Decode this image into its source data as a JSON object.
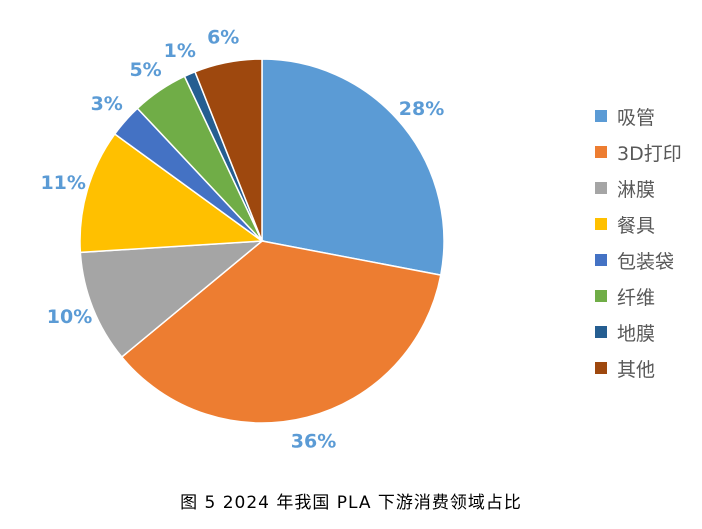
{
  "chart_data": {
    "type": "pie",
    "categories": [
      "吸管",
      "3D打印",
      "淋膜",
      "餐具",
      "包装袋",
      "纤维",
      "地膜",
      "其他"
    ],
    "values": [
      28,
      36,
      10,
      11,
      3,
      5,
      1,
      6
    ],
    "data_labels": [
      "28%",
      "36%",
      "10%",
      "11%",
      "3%",
      "5%",
      "1%",
      "6%"
    ],
    "colors": [
      "#5b9bd5",
      "#ed7d31",
      "#a5a5a5",
      "#ffc000",
      "#4472c4",
      "#70ad47",
      "#255e91",
      "#9e480e"
    ],
    "label_color": "#5b9bd5",
    "start_angle_deg": 0,
    "direction": "clockwise",
    "legend_position": "right"
  },
  "figure": {
    "caption": "图 5  2024 年我国 PLA 下游消费领域占比"
  }
}
